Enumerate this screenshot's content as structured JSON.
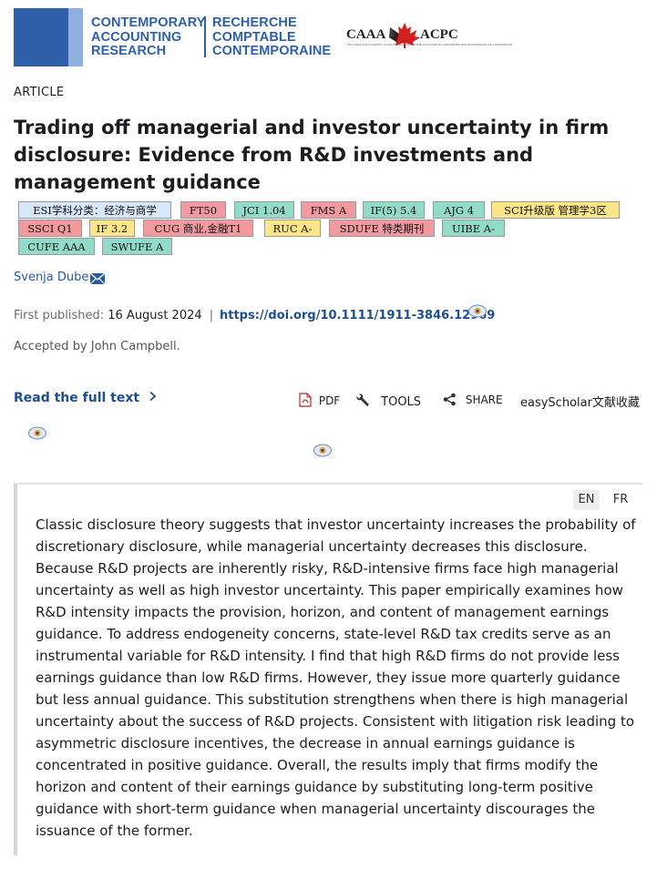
{
  "journal": {
    "name_en": [
      "CONTEMPORARY",
      "ACCOUNTING",
      "RESEARCH"
    ],
    "name_fr": [
      "RECHERCHE",
      "COMPTABLE",
      "CONTEMPORAINE"
    ],
    "partner_left": "CAAA",
    "partner_right": "ACPC",
    "partner_left_sub": "THE CANADIAN ACADEMIC ACCOUNTING ASSOCIATION",
    "partner_right_sub": "L'ASSOCIATION CANADIENNE DES PROFESSEURS DE COMPTABILITÉ"
  },
  "article": {
    "type_label": "ARTICLE",
    "title": "Trading off managerial and investor uncertainty in firm disclosure: Evidence from R&D investments and management guidance",
    "author": "Svenja Dube",
    "first_published_label": "First published:",
    "first_published_date": "16 August 2024",
    "separator": "|",
    "doi": "https://doi.org/10.1111/1911-3846.12969",
    "accepted": "Accepted by John Campbell."
  },
  "tags": [
    {
      "label": "ESI学科分类：经济与商学",
      "color": "blue"
    },
    {
      "label": "FT50",
      "color": "red"
    },
    {
      "label": "JCI 1.04",
      "color": "teal"
    },
    {
      "label": "FMS A",
      "color": "red"
    },
    {
      "label": "IF(5) 5.4",
      "color": "teal"
    },
    {
      "label": "AJG 4",
      "color": "teal"
    },
    {
      "label": "SCI升级版 管理学3区",
      "color": "yellow"
    },
    {
      "label": "SSCI Q1",
      "color": "red"
    },
    {
      "label": "IF 3.2",
      "color": "yellow"
    },
    {
      "label": "CUG 商业,金融T1",
      "color": "red"
    },
    {
      "label": "RUC A-",
      "color": "yellow"
    },
    {
      "label": "SDUFE 特类期刊",
      "color": "red"
    },
    {
      "label": "UIBE A-",
      "color": "teal"
    },
    {
      "label": "CUFE AAA",
      "color": "teal"
    },
    {
      "label": "SWUFE A",
      "color": "teal"
    }
  ],
  "actions": {
    "read_full": "Read the full text",
    "pdf": "PDF",
    "tools": "TOOLS",
    "share": "SHARE",
    "easyscholar": "easyScholar文献收藏"
  },
  "abstract": {
    "lang_en": "EN",
    "lang_fr": "FR",
    "text": "Classic disclosure theory suggests that investor uncertainty increases the probability of discretionary disclosure, while managerial uncertainty decreases this disclosure. Because R&D projects are inherently risky, R&D-intensive firms face high managerial uncertainty as well as high investor uncertainty. This paper empirically examines how R&D intensity impacts the provision, horizon, and content of management earnings guidance. To address endogeneity concerns, state-level R&D tax credits serve as an instrumental variable for R&D intensity. I find that high R&D firms do not provide less earnings guidance than low R&D firms. However, they issue more quarterly guidance but less annual guidance. This substitution strengthens when there is high managerial uncertainty about the success of R&D projects. Consistent with litigation risk leading to asymmetric disclosure incentives, the decrease in annual earnings guidance is concentrated in positive guidance. Overall, the results imply that firms modify the horizon and content of their earnings guidance by substituting long-term positive guidance with short-term guidance when managerial uncertainty discourages the issuance of the former."
  },
  "colors": {
    "brand_blue": "#2f5fa8",
    "link_blue": "#1d4e8f",
    "tag_blue": "#d7e8fb",
    "tag_red": "#f39aa0",
    "tag_teal": "#93dbc9",
    "tag_yellow": "#fde68a"
  },
  "icons": [
    "mail-icon",
    "pdf-icon",
    "wrench-icon",
    "share-icon",
    "chevron-right-icon",
    "easyscholar-eye-icon",
    "maple-leaf-icon"
  ]
}
